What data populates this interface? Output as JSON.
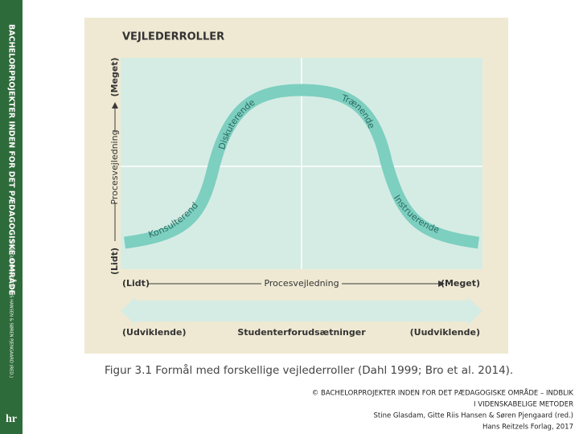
{
  "sidebar": {
    "title": "BACHELORPROJEKTER INDEN FOR DET PÆDAGOGISKE OMRÅDE",
    "authors": "STINE GLASDAM, GITTE RIIS HANSEN & SØREN PJENGAARD (RED.)",
    "logo": "hr"
  },
  "figure": {
    "title": "VEJLEDERROLLER",
    "roles": [
      "Konsulterende",
      "Diskuterende",
      "Trænende",
      "Instruerende"
    ],
    "y_axis": {
      "low": "(Lidt)",
      "label": "Procesvejledning",
      "high": "(Meget)"
    },
    "x_axis": {
      "low": "(Lidt)",
      "label": "Procesvejledning",
      "high": "(Meget)"
    },
    "band": {
      "low": "(Udviklende)",
      "label": "Studenterforudsætninger",
      "high": "(Uudviklende)"
    },
    "caption": "Figur 3.1 Formål med forskellige vejlederroller (Dahl 1999; Bro et al. 2014)."
  },
  "footer": {
    "lines": [
      "© BACHELORPROJEKTER INDEN FOR DET PÆDAGOGISKE OMRÅDE – INDBLIK",
      "I VIDENSKABELIGE METODER",
      "Stine Glasdam, Gitte Riis Hansen & Søren Pjengaard (red.)",
      "Hans Reitzels Forlag, 2017"
    ]
  }
}
